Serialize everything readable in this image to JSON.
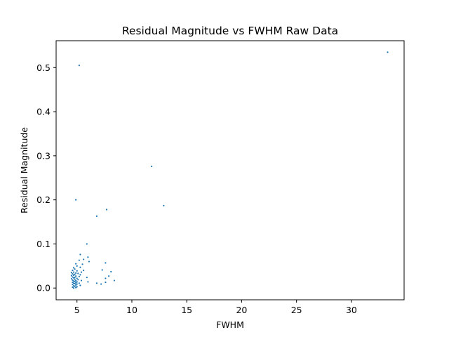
{
  "chart_data": {
    "type": "scatter",
    "title": "Residual Magnitude vs FWHM Raw Data",
    "xlabel": "FWHM",
    "ylabel": "Residual Magnitude",
    "xlim": [
      3.1,
      34.8
    ],
    "ylim": [
      -0.0267,
      0.561
    ],
    "xticks": [
      5,
      10,
      15,
      20,
      25,
      30
    ],
    "xtick_labels": [
      "5",
      "10",
      "15",
      "20",
      "25",
      "30"
    ],
    "yticks": [
      0.0,
      0.1,
      0.2,
      0.3,
      0.4,
      0.5
    ],
    "ytick_labels": [
      "0.0",
      "0.1",
      "0.2",
      "0.3",
      "0.4",
      "0.5"
    ],
    "grid": false,
    "legend": "none",
    "marker_color": "#1f77b4",
    "points": [
      [
        33.3,
        0.535
      ],
      [
        5.2,
        0.505
      ],
      [
        11.8,
        0.276
      ],
      [
        4.9,
        0.2
      ],
      [
        12.9,
        0.187
      ],
      [
        7.7,
        0.178
      ],
      [
        6.8,
        0.163
      ],
      [
        5.9,
        0.1
      ],
      [
        5.3,
        0.076
      ],
      [
        6.0,
        0.07
      ],
      [
        5.6,
        0.065
      ],
      [
        5.2,
        0.063
      ],
      [
        6.1,
        0.06
      ],
      [
        7.6,
        0.057
      ],
      [
        4.9,
        0.055
      ],
      [
        5.5,
        0.054
      ],
      [
        5.0,
        0.05
      ],
      [
        5.3,
        0.047
      ],
      [
        4.7,
        0.046
      ],
      [
        4.8,
        0.043
      ],
      [
        7.3,
        0.041
      ],
      [
        4.6,
        0.04
      ],
      [
        5.6,
        0.04
      ],
      [
        5.0,
        0.039
      ],
      [
        8.1,
        0.037
      ],
      [
        4.7,
        0.036
      ],
      [
        5.4,
        0.036
      ],
      [
        4.5,
        0.035
      ],
      [
        4.9,
        0.034
      ],
      [
        5.1,
        0.033
      ],
      [
        4.6,
        0.032
      ],
      [
        4.8,
        0.031
      ],
      [
        5.3,
        0.03
      ],
      [
        4.7,
        0.029
      ],
      [
        4.5,
        0.028
      ],
      [
        4.9,
        0.027
      ],
      [
        7.9,
        0.027
      ],
      [
        5.2,
        0.026
      ],
      [
        4.6,
        0.025
      ],
      [
        4.8,
        0.024
      ],
      [
        5.9,
        0.024
      ],
      [
        4.7,
        0.023
      ],
      [
        5.0,
        0.022
      ],
      [
        7.6,
        0.022
      ],
      [
        4.5,
        0.021
      ],
      [
        4.8,
        0.02
      ],
      [
        5.1,
        0.019
      ],
      [
        4.6,
        0.018
      ],
      [
        4.9,
        0.017
      ],
      [
        5.4,
        0.017
      ],
      [
        8.4,
        0.017
      ],
      [
        4.7,
        0.016
      ],
      [
        4.8,
        0.015
      ],
      [
        5.0,
        0.014
      ],
      [
        6.0,
        0.014
      ],
      [
        4.6,
        0.013
      ],
      [
        7.6,
        0.013
      ],
      [
        4.9,
        0.012
      ],
      [
        5.2,
        0.011
      ],
      [
        4.7,
        0.011
      ],
      [
        6.8,
        0.011
      ],
      [
        4.8,
        0.01
      ],
      [
        5.0,
        0.009
      ],
      [
        7.2,
        0.009
      ],
      [
        4.6,
        0.008
      ],
      [
        4.9,
        0.007
      ],
      [
        5.3,
        0.006
      ],
      [
        4.7,
        0.005
      ],
      [
        4.8,
        0.004
      ],
      [
        5.0,
        0.003
      ],
      [
        4.6,
        0.002
      ],
      [
        4.9,
        0.001
      ],
      [
        4.7,
        0.0
      ]
    ]
  }
}
